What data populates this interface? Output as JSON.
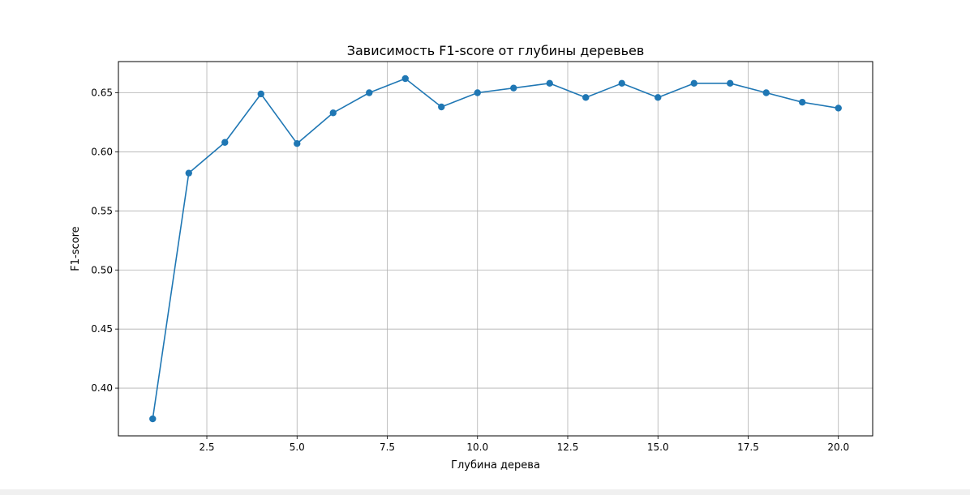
{
  "chart_data": {
    "type": "line",
    "title": "Зависимость F1-score от глубины деревьев",
    "xlabel": "Глубина дерева",
    "ylabel": "F1-score",
    "x": [
      1,
      2,
      3,
      4,
      5,
      6,
      7,
      8,
      9,
      10,
      11,
      12,
      13,
      14,
      15,
      16,
      17,
      18,
      19,
      20
    ],
    "series": [
      {
        "values": [
          0.374,
          0.582,
          0.608,
          0.649,
          0.607,
          0.633,
          0.65,
          0.662,
          0.638,
          0.65,
          0.654,
          0.658,
          0.646,
          0.658,
          0.646,
          0.658,
          0.658,
          0.65,
          0.642,
          0.637
        ]
      }
    ],
    "xlim": [
      0.05,
      20.95
    ],
    "ylim": [
      0.3596,
      0.6764
    ],
    "xticks": [
      2.5,
      5.0,
      7.5,
      10.0,
      12.5,
      15.0,
      17.5,
      20.0
    ],
    "xtick_labels": [
      "2.5",
      "5.0",
      "7.5",
      "10.0",
      "12.5",
      "15.0",
      "17.5",
      "20.0"
    ],
    "yticks": [
      0.4,
      0.45,
      0.5,
      0.55,
      0.6,
      0.65
    ],
    "ytick_labels": [
      "0.40",
      "0.45",
      "0.50",
      "0.55",
      "0.60",
      "0.65"
    ],
    "grid": true,
    "colors": {
      "line": "#1f77b4",
      "grid": "#b0b0b0",
      "axes": "#000000"
    }
  }
}
